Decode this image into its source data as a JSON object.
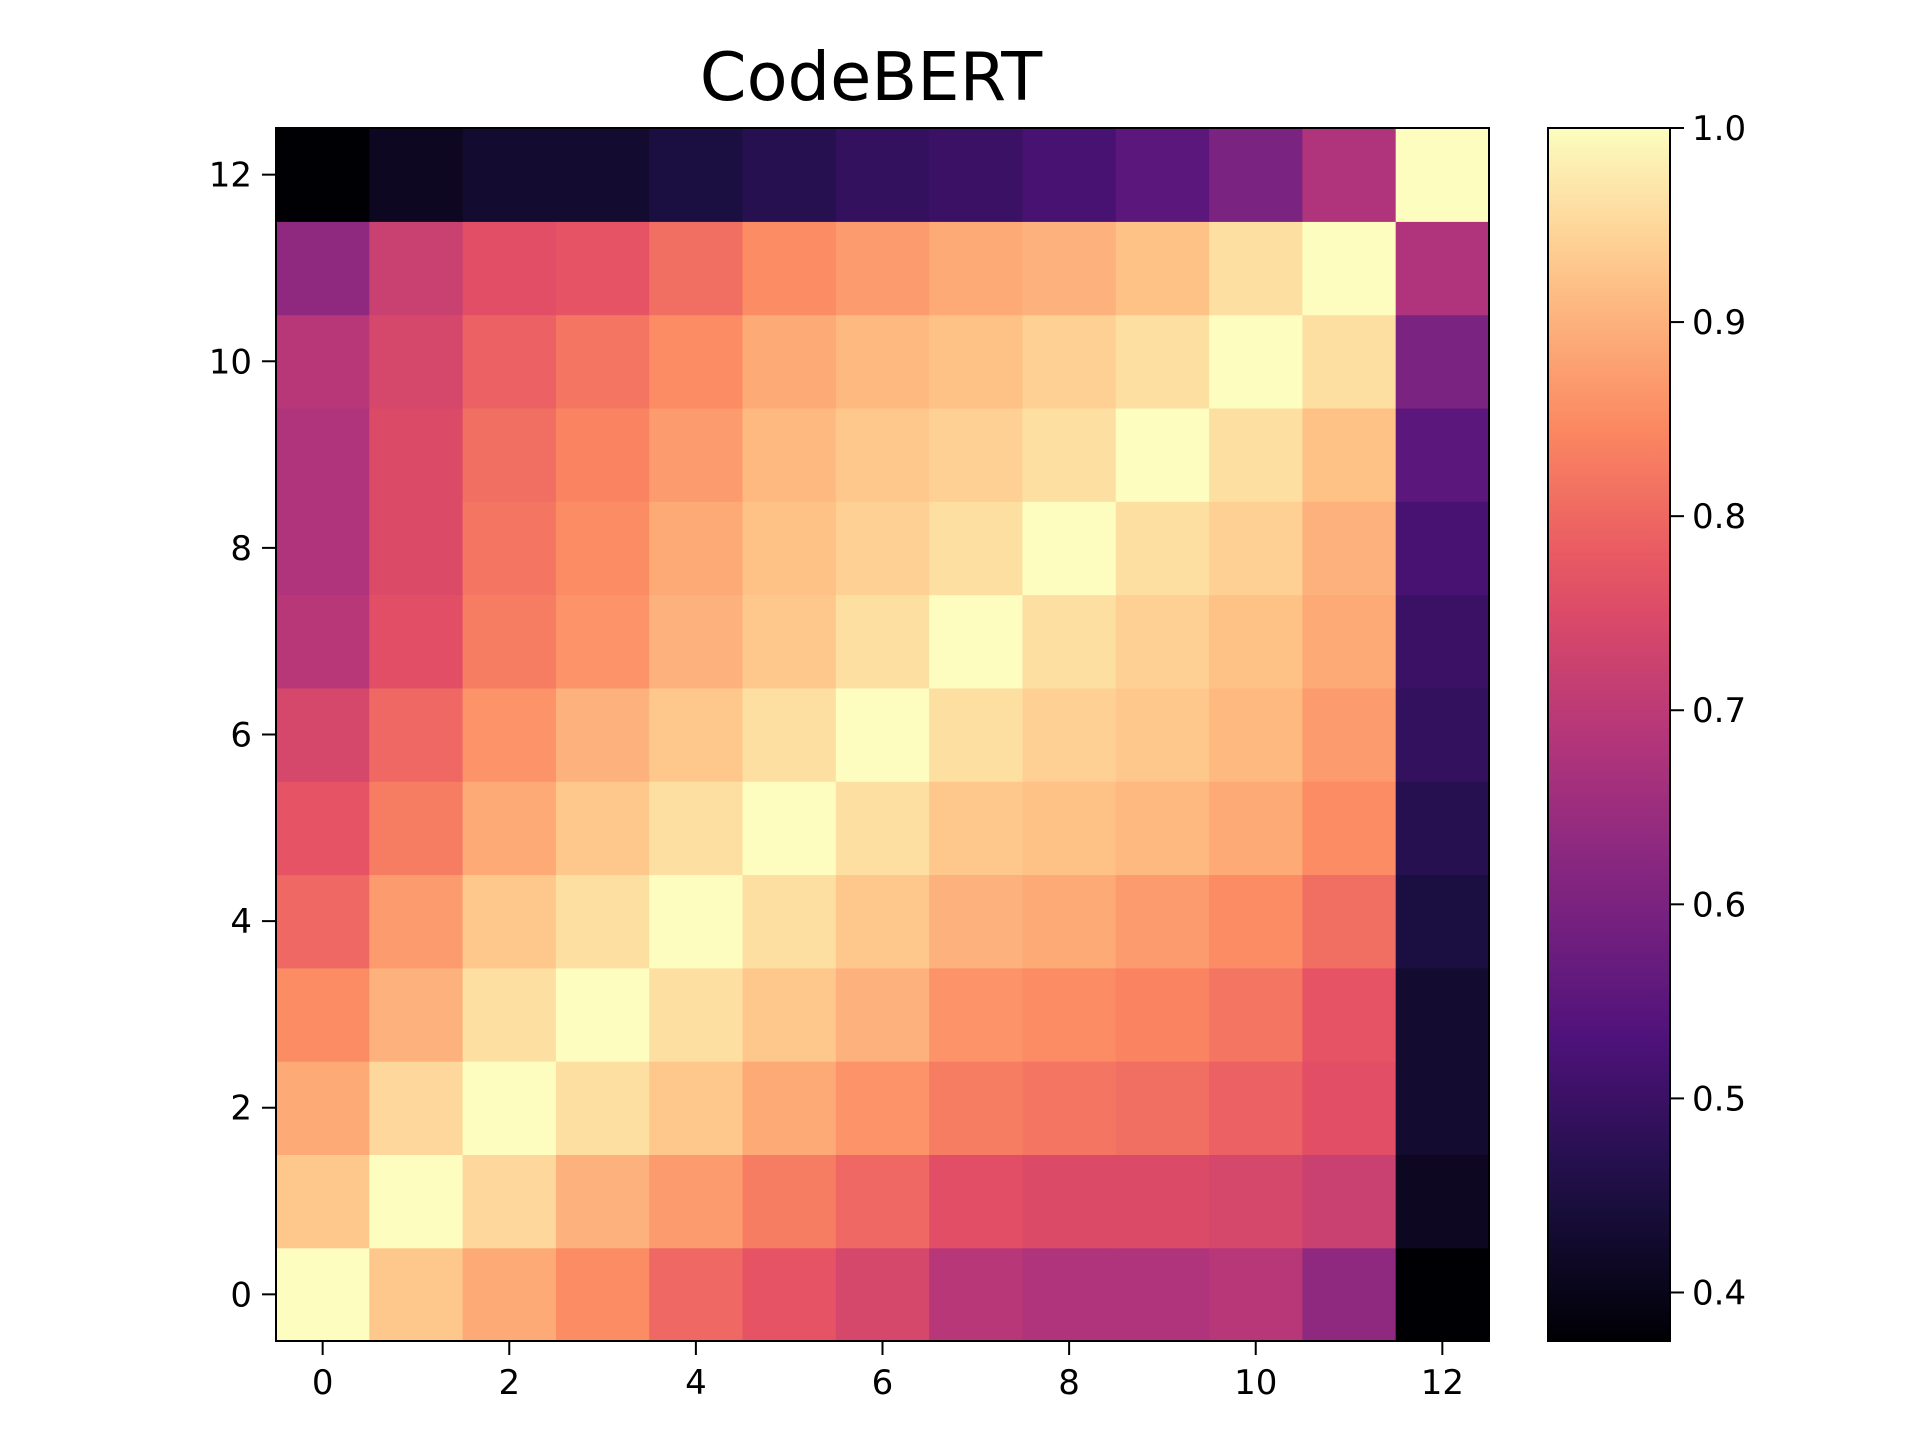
{
  "chart_data": {
    "type": "heatmap",
    "title": "CodeBERT",
    "xlabel": "",
    "ylabel": "",
    "colormap": "magma",
    "x_ticks": [
      "0",
      "2",
      "4",
      "6",
      "8",
      "10",
      "12"
    ],
    "y_ticks": [
      "0",
      "2",
      "4",
      "6",
      "8",
      "10",
      "12"
    ],
    "colorbar": {
      "range": [
        0.375,
        1.0
      ],
      "ticks": [
        "0.4",
        "0.5",
        "0.6",
        "0.7",
        "0.8",
        "0.9",
        "1.0"
      ]
    },
    "matrix": [
      [
        1.0,
        0.93,
        0.89,
        0.85,
        0.8,
        0.77,
        0.74,
        0.69,
        0.68,
        0.68,
        0.69,
        0.63,
        0.375
      ],
      [
        0.93,
        1.0,
        0.95,
        0.9,
        0.87,
        0.83,
        0.8,
        0.76,
        0.75,
        0.75,
        0.74,
        0.72,
        0.41
      ],
      [
        0.89,
        0.95,
        1.0,
        0.96,
        0.93,
        0.89,
        0.86,
        0.83,
        0.82,
        0.81,
        0.79,
        0.76,
        0.43
      ],
      [
        0.85,
        0.9,
        0.96,
        1.0,
        0.96,
        0.93,
        0.9,
        0.86,
        0.85,
        0.84,
        0.82,
        0.77,
        0.43
      ],
      [
        0.8,
        0.87,
        0.93,
        0.96,
        1.0,
        0.96,
        0.93,
        0.9,
        0.89,
        0.87,
        0.85,
        0.81,
        0.45
      ],
      [
        0.77,
        0.83,
        0.89,
        0.93,
        0.96,
        1.0,
        0.96,
        0.93,
        0.92,
        0.91,
        0.89,
        0.85,
        0.47
      ],
      [
        0.74,
        0.8,
        0.86,
        0.9,
        0.93,
        0.96,
        1.0,
        0.96,
        0.94,
        0.93,
        0.91,
        0.87,
        0.49
      ],
      [
        0.69,
        0.76,
        0.83,
        0.86,
        0.9,
        0.93,
        0.96,
        1.0,
        0.96,
        0.94,
        0.92,
        0.89,
        0.5
      ],
      [
        0.68,
        0.75,
        0.82,
        0.85,
        0.89,
        0.92,
        0.94,
        0.96,
        1.0,
        0.96,
        0.94,
        0.9,
        0.52
      ],
      [
        0.68,
        0.75,
        0.81,
        0.84,
        0.87,
        0.91,
        0.93,
        0.94,
        0.96,
        1.0,
        0.96,
        0.92,
        0.55
      ],
      [
        0.69,
        0.74,
        0.79,
        0.82,
        0.85,
        0.89,
        0.91,
        0.92,
        0.94,
        0.96,
        1.0,
        0.96,
        0.6
      ],
      [
        0.63,
        0.72,
        0.76,
        0.77,
        0.81,
        0.85,
        0.87,
        0.89,
        0.9,
        0.92,
        0.96,
        1.0,
        0.68
      ],
      [
        0.375,
        0.41,
        0.43,
        0.43,
        0.45,
        0.47,
        0.49,
        0.5,
        0.52,
        0.55,
        0.6,
        0.68,
        1.0
      ]
    ]
  }
}
